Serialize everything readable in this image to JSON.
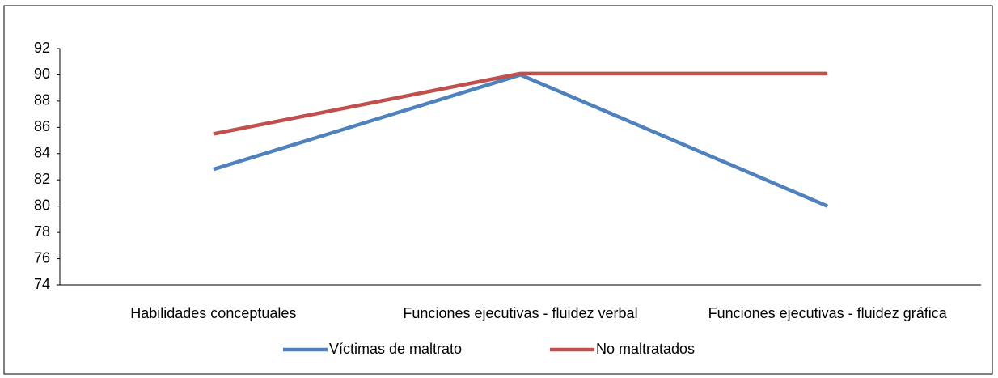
{
  "chart_data": {
    "type": "line",
    "categories": [
      "Habilidades conceptuales",
      "Funciones ejecutivas - fluidez verbal",
      "Funciones ejecutivas - fluidez gráfica"
    ],
    "series": [
      {
        "name": "Víctimas de maltrato",
        "color": "#4f81bd",
        "values": [
          82.8,
          90,
          80
        ]
      },
      {
        "name": "No maltratados",
        "color": "#c0504d",
        "values": [
          85.5,
          90.1,
          90.1
        ]
      }
    ],
    "ylim": [
      74,
      92
    ],
    "yticks": [
      74,
      76,
      78,
      80,
      82,
      84,
      86,
      88,
      90,
      92
    ],
    "grid": false,
    "legend": "bottom"
  }
}
